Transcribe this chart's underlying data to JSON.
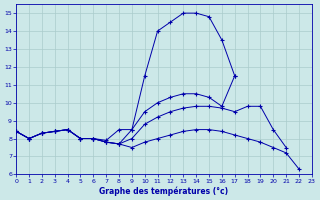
{
  "xlabel": "Graphe des températures (°c)",
  "background_color": "#cce8e8",
  "grid_color": "#aacccc",
  "line_color": "#0000aa",
  "x": [
    0,
    1,
    2,
    3,
    4,
    5,
    6,
    7,
    8,
    9,
    10,
    11,
    12,
    13,
    14,
    15,
    16,
    17,
    18,
    19,
    20,
    21,
    22,
    23
  ],
  "line1": [
    8.4,
    8.0,
    8.3,
    8.4,
    8.5,
    8.0,
    8.0,
    7.9,
    8.5,
    8.5,
    11.5,
    14.0,
    14.5,
    15.0,
    15.0,
    14.8,
    13.5,
    11.5,
    null,
    null,
    null,
    null,
    null,
    null
  ],
  "line2": [
    8.4,
    8.0,
    8.3,
    8.4,
    8.5,
    8.0,
    8.0,
    7.8,
    7.7,
    8.5,
    9.5,
    10.0,
    10.3,
    10.5,
    10.5,
    10.3,
    9.8,
    11.5,
    null,
    null,
    null,
    null,
    null,
    null
  ],
  "line3": [
    8.4,
    8.0,
    8.3,
    8.4,
    8.5,
    8.0,
    8.0,
    7.8,
    7.7,
    8.0,
    8.8,
    9.2,
    9.5,
    9.7,
    9.8,
    9.8,
    9.7,
    9.5,
    9.8,
    9.8,
    8.5,
    7.5,
    null,
    null
  ],
  "line4": [
    8.4,
    8.0,
    8.3,
    8.4,
    8.5,
    8.0,
    8.0,
    7.8,
    7.7,
    7.5,
    7.8,
    8.0,
    8.2,
    8.4,
    8.5,
    8.5,
    8.4,
    8.2,
    8.0,
    7.8,
    7.5,
    7.2,
    6.3,
    null
  ],
  "ylim": [
    6,
    15.5
  ],
  "xlim": [
    0,
    23
  ],
  "yticks": [
    6,
    7,
    8,
    9,
    10,
    11,
    12,
    13,
    14,
    15
  ],
  "xticks": [
    0,
    1,
    2,
    3,
    4,
    5,
    6,
    7,
    8,
    9,
    10,
    11,
    12,
    13,
    14,
    15,
    16,
    17,
    18,
    19,
    20,
    21,
    22,
    23
  ]
}
